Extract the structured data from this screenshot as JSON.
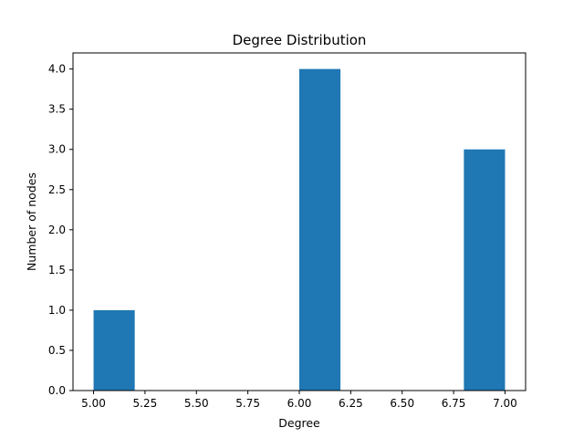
{
  "chart_data": {
    "type": "bar",
    "title": "Degree Distribution",
    "xlabel": "Degree",
    "ylabel": "Number of nodes",
    "bins": [
      {
        "x_start": 5.0,
        "x_end": 5.2,
        "count": 1
      },
      {
        "x_start": 5.2,
        "x_end": 5.4,
        "count": 0
      },
      {
        "x_start": 5.4,
        "x_end": 5.6,
        "count": 0
      },
      {
        "x_start": 5.6,
        "x_end": 5.8,
        "count": 0
      },
      {
        "x_start": 5.8,
        "x_end": 6.0,
        "count": 0
      },
      {
        "x_start": 6.0,
        "x_end": 6.2,
        "count": 4
      },
      {
        "x_start": 6.2,
        "x_end": 6.4,
        "count": 0
      },
      {
        "x_start": 6.4,
        "x_end": 6.6,
        "count": 0
      },
      {
        "x_start": 6.6,
        "x_end": 6.8,
        "count": 0
      },
      {
        "x_start": 6.8,
        "x_end": 7.0,
        "count": 3
      }
    ],
    "xlim": [
      4.9,
      7.1
    ],
    "ylim": [
      0,
      4.2
    ],
    "xticks": [
      "5.00",
      "5.25",
      "5.50",
      "5.75",
      "6.00",
      "6.25",
      "6.50",
      "6.75",
      "7.00"
    ],
    "xtick_values": [
      5.0,
      5.25,
      5.5,
      5.75,
      6.0,
      6.25,
      6.5,
      6.75,
      7.0
    ],
    "yticks": [
      "0.0",
      "0.5",
      "1.0",
      "1.5",
      "2.0",
      "2.5",
      "3.0",
      "3.5",
      "4.0"
    ],
    "ytick_values": [
      0,
      0.5,
      1.0,
      1.5,
      2.0,
      2.5,
      3.0,
      3.5,
      4.0
    ],
    "bar_color": "#1f77b4",
    "grid": false,
    "legend": "none"
  }
}
